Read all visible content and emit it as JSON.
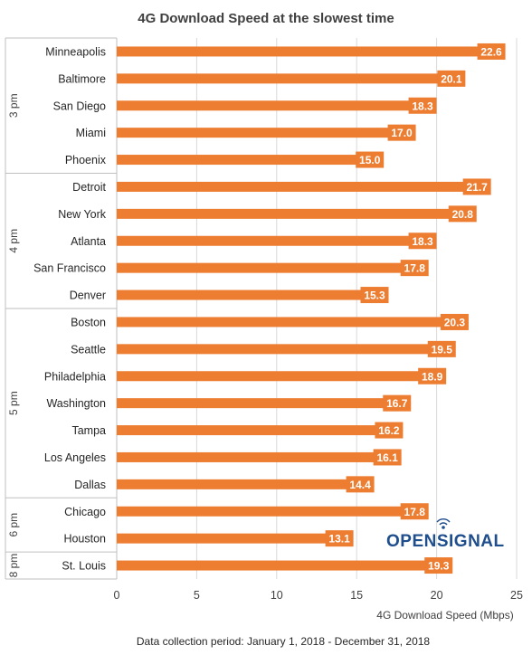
{
  "chart_data": {
    "type": "bar",
    "orientation": "horizontal",
    "title": "4G Download Speed at the slowest time",
    "xlabel": "4G Download Speed (Mbps)",
    "xlim": [
      0,
      25
    ],
    "xticks": [
      0,
      5,
      10,
      15,
      20,
      25
    ],
    "grid": true,
    "bar_color": "#ed7d31",
    "groups": [
      {
        "name": "3 pm",
        "categories": [
          "Minneapolis",
          "Baltimore",
          "San Diego",
          "Miami",
          "Phoenix"
        ],
        "values": [
          22.6,
          20.1,
          18.3,
          17.0,
          15.0
        ]
      },
      {
        "name": "4 pm",
        "categories": [
          "Detroit",
          "New York",
          "Atlanta",
          "San Francisco",
          "Denver"
        ],
        "values": [
          21.7,
          20.8,
          18.3,
          17.8,
          15.3
        ]
      },
      {
        "name": "5 pm",
        "categories": [
          "Boston",
          "Seattle",
          "Philadelphia",
          "Washington",
          "Tampa",
          "Los Angeles",
          "Dallas"
        ],
        "values": [
          20.3,
          19.5,
          18.9,
          16.7,
          16.2,
          16.1,
          14.4
        ]
      },
      {
        "name": "6 pm",
        "categories": [
          "Chicago",
          "Houston"
        ],
        "values": [
          17.8,
          13.1
        ]
      },
      {
        "name": "8 pm",
        "categories": [
          "St. Louis"
        ],
        "values": [
          19.3
        ]
      }
    ]
  },
  "footnote": "Data collection period: January 1, 2018 - December 31, 2018",
  "brand": {
    "name": "OPENSIGNAL",
    "color": "#1f4e8c"
  }
}
